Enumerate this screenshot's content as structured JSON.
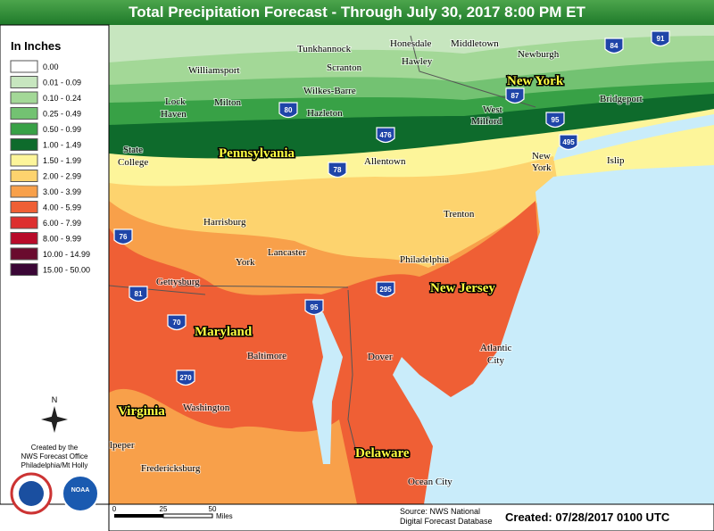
{
  "header": {
    "title": "Total Precipitation Forecast - Through July 30, 2017 8:00 PM ET"
  },
  "legend": {
    "title": "In Inches",
    "items": [
      {
        "label": "0.00",
        "color": "#ffffff"
      },
      {
        "label": "0.01 - 0.09",
        "color": "#c7e6bf"
      },
      {
        "label": "0.10 - 0.24",
        "color": "#a3d897"
      },
      {
        "label": "0.25 - 0.49",
        "color": "#73c272"
      },
      {
        "label": "0.50 - 0.99",
        "color": "#38a146"
      },
      {
        "label": "1.00 - 1.49",
        "color": "#0e6b2c"
      },
      {
        "label": "1.50 - 1.99",
        "color": "#fdf59a"
      },
      {
        "label": "2.00 - 2.99",
        "color": "#fdd36e"
      },
      {
        "label": "3.00 - 3.99",
        "color": "#f8a04a"
      },
      {
        "label": "4.00 - 5.99",
        "color": "#ef5f35"
      },
      {
        "label": "6.00 - 7.99",
        "color": "#dd2f2f"
      },
      {
        "label": "8.00 - 9.99",
        "color": "#b80b2a"
      },
      {
        "label": "10.00 - 14.99",
        "color": "#6a0b2e"
      },
      {
        "label": "15.00 - 50.00",
        "color": "#3a0636"
      }
    ]
  },
  "credit": {
    "north": "N",
    "lines": [
      "Created by the",
      "NWS Forecast Office",
      "Philadelphia/Mt Holly"
    ],
    "logo": "NOAA"
  },
  "states": [
    "New York",
    "Pennsylvania",
    "New Jersey",
    "Maryland",
    "Virginia",
    "Delaware"
  ],
  "cities": [
    "Tunkhannock",
    "Honesdale",
    "Hawley",
    "Middletown",
    "Newburgh",
    "Williamsport",
    "Scranton",
    "Lock",
    "Haven",
    "Milton",
    "Wilkes-Barre",
    "Hazleton",
    "West",
    "Milford",
    "Bridgeport",
    "State",
    "College",
    "Allentown",
    "New",
    "York",
    "Islip",
    "Trenton",
    "Harrisburg",
    "Lancaster",
    "York",
    "Philadelphia",
    "Gettysburg",
    "Baltimore",
    "Dover",
    "Atlantic",
    "City",
    "Washington",
    "lpeper",
    "Fredericksburg",
    "Ocean City"
  ],
  "interstates": [
    "84",
    "91",
    "87",
    "80",
    "476",
    "95",
    "495",
    "78",
    "76",
    "81",
    "70",
    "270",
    "295",
    "95"
  ],
  "scale": {
    "ticks": [
      "0",
      "25",
      "50"
    ],
    "unit": "Miles"
  },
  "footer": {
    "source": [
      "Source: NWS National",
      "Digital Forecast Database"
    ],
    "created": "Created: 07/28/2017 0100 UTC"
  }
}
